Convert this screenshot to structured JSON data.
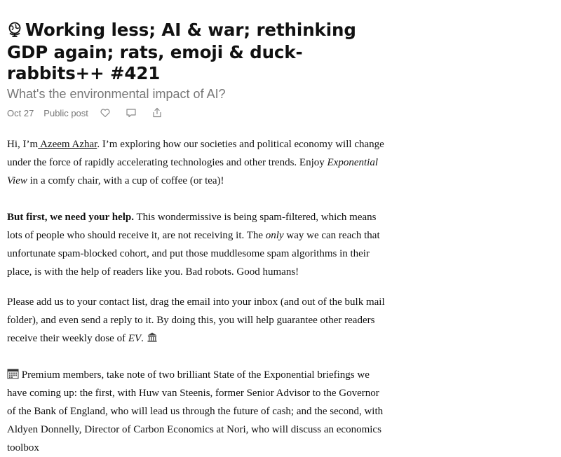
{
  "post": {
    "globe_icon": "globe-icon",
    "title": "Working less; AI & war; rethinking GDP again; rats, emoji & duck-rabbits++ #421",
    "subtitle": "What's the environmental impact of AI?",
    "date": "Oct 27",
    "visibility": "Public post"
  },
  "meta_icons": [
    "heart-icon",
    "comment-icon",
    "share-icon"
  ],
  "para1": {
    "t1": "Hi, I’m",
    "link": " Azeem Azhar",
    "t2": ". I’m exploring how our societies and political economy will change under the force of rapidly accelerating technologies and other trends. Enjoy ",
    "em": "Exponential View",
    "t3": " in a comfy chair, with a cup of coffee (or tea)!"
  },
  "para2": {
    "bold": "But first, we need your help.",
    "t1": " This wondermissive is being spam-filtered, which means lots of people who should receive it, are not receiving it. The ",
    "em": "only",
    "t2": " way we can reach that unfortunate spam-blocked cohort, and put those muddlesome spam algorithms in their place, is with the help of readers like you. Bad robots. Good humans!"
  },
  "para3": {
    "t1": "Please add us to your contact list, drag the email into your inbox (and out of the bulk mail folder), and even send a reply to it. By doing this, you will help guarantee other readers receive their weekly dose of ",
    "em": "EV",
    "t2": ".",
    "icon": "bank-icon"
  },
  "para4": {
    "icon": "calendar-icon",
    "t1": " Premium members, take note of two brilliant State of the Exponential briefings we have coming up: the first, with Huw van Steenis, former Senior Advisor to the Governor of the Bank of England, who will lead us through the future of cash; and the second, with Aldyen Donnelly, Director of Carbon Economics at Nori, who will discuss an economics toolbox"
  }
}
